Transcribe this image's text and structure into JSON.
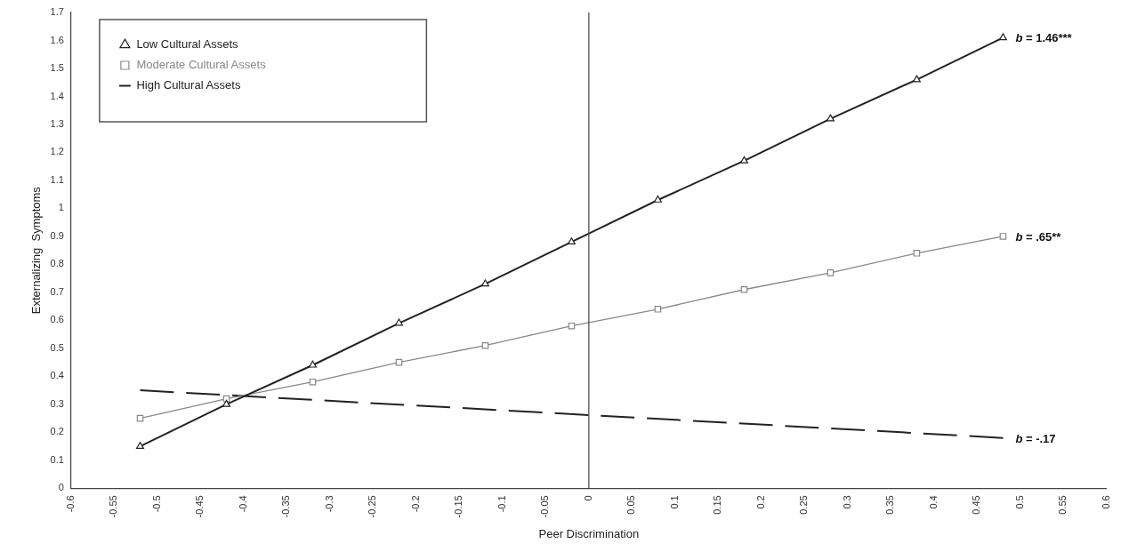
{
  "chart_data": {
    "type": "line",
    "xlabel": "Peer Discrimination",
    "ylabel": "Externalizing  Symptoms",
    "xlim": [
      -0.6,
      0.6
    ],
    "xticks": [
      -0.6,
      -0.55,
      -0.5,
      -0.45,
      -0.4,
      -0.35,
      -0.3,
      -0.25,
      -0.2,
      -0.15,
      -0.1,
      -0.05,
      0,
      0.05,
      0.1,
      0.15,
      0.2,
      0.25,
      0.3,
      0.35,
      0.4,
      0.45,
      0.5,
      0.55,
      0.6
    ],
    "ylim": [
      0,
      1.7
    ],
    "yticks": [
      0,
      0.1,
      0.2,
      0.3,
      0.4,
      0.5,
      0.6,
      0.7,
      0.8,
      0.9,
      1,
      1.1,
      1.2,
      1.3,
      1.4,
      1.5,
      1.6,
      1.7
    ],
    "grid": false,
    "legend": "top left",
    "x": [
      -0.52,
      -0.42,
      -0.32,
      -0.22,
      -0.12,
      -0.02,
      0.08,
      0.18,
      0.28,
      0.38,
      0.48
    ],
    "series": [
      {
        "name": "Low Cultural Assets",
        "color": "#222222",
        "marker": "triangle",
        "line_style": "solid",
        "values": [
          0.15,
          0.3,
          0.44,
          0.59,
          0.73,
          0.88,
          1.03,
          1.17,
          1.32,
          1.46,
          1.61
        ]
      },
      {
        "name": "Moderate Cultural Assets",
        "color": "#888888",
        "marker": "square",
        "line_style": "solid",
        "values": [
          0.25,
          0.32,
          0.38,
          0.45,
          0.51,
          0.58,
          0.64,
          0.71,
          0.77,
          0.84,
          0.9
        ]
      },
      {
        "name": "High Cultural Assets",
        "color": "#222222",
        "marker": "none",
        "line_style": "dashed",
        "x": [
          -0.52,
          0.48
        ],
        "values": [
          0.35,
          0.18
        ]
      }
    ],
    "ref_lines": [
      {
        "axis": "x",
        "value": 0,
        "color": "#444444",
        "line_style": "solid"
      }
    ],
    "annotations": [
      "b = 1.46***",
      "b = .65**",
      "b = -.17"
    ]
  }
}
